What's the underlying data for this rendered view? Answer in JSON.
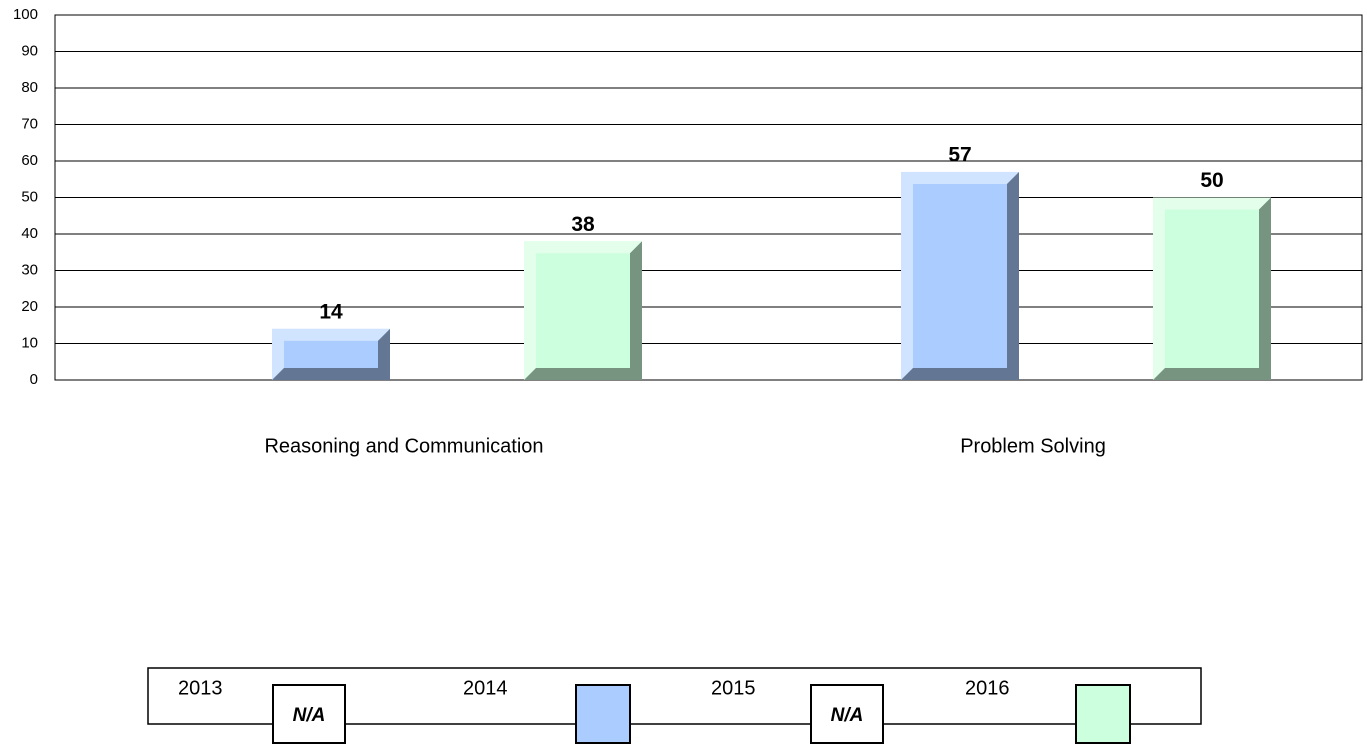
{
  "chart_data": {
    "type": "bar",
    "categories": [
      "Reasoning and Communication",
      "Problem Solving"
    ],
    "series": [
      {
        "name": "2013",
        "values": [
          null,
          null
        ],
        "swatch_label": "N/A"
      },
      {
        "name": "2014",
        "color": "#aaccff",
        "values": [
          14,
          57
        ]
      },
      {
        "name": "2015",
        "values": [
          null,
          null
        ],
        "swatch_label": "N/A"
      },
      {
        "name": "2016",
        "color": "#ccffdd",
        "values": [
          38,
          50
        ]
      }
    ],
    "ylim": [
      0,
      100
    ],
    "yticks": [
      0,
      10,
      20,
      30,
      40,
      50,
      60,
      70,
      80,
      90,
      100
    ],
    "grid": true
  }
}
